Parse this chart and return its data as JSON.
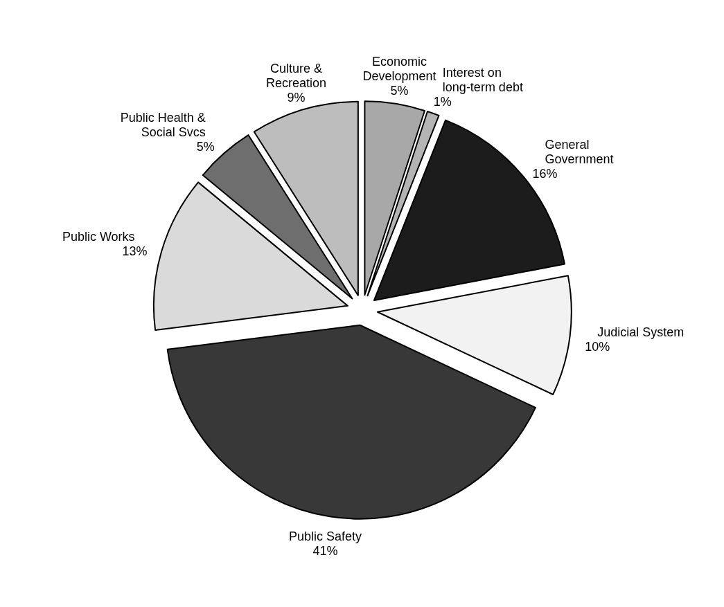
{
  "chart_data": {
    "type": "pie",
    "categories": [
      "Economic Development",
      "Interest on long-term debt",
      "General Government",
      "Judicial System",
      "Public Safety",
      "Public Works",
      "Public Health & Social Svcs",
      "Culture & Recreation"
    ],
    "values": [
      5,
      1,
      16,
      10,
      41,
      13,
      5,
      9
    ],
    "value_labels": [
      "5%",
      "1%",
      "16%",
      "10%",
      "41%",
      "13%",
      "5%",
      "9%"
    ],
    "colors": [
      "#a8a8a8",
      "#b4b4b4",
      "#1c1c1c",
      "#f2f2f2",
      "#383838",
      "#dadada",
      "#6e6e6e",
      "#bdbdbd"
    ]
  }
}
